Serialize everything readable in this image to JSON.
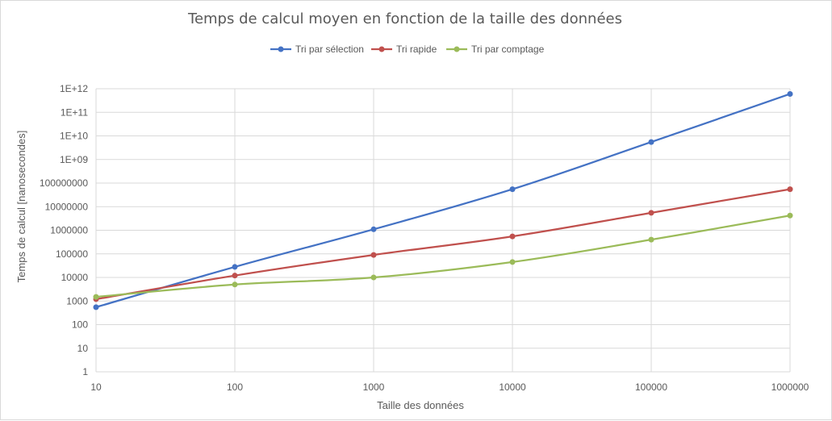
{
  "chart_data": {
    "type": "line",
    "title": "Temps de calcul moyen en fonction de la taille des données",
    "xlabel": "Taille des données",
    "ylabel": "Temps de calcul [nanosecondes]",
    "x_scale": "log",
    "y_scale": "log",
    "x": [
      10,
      100,
      1000,
      10000,
      100000,
      1000000
    ],
    "x_tick_labels": [
      "10",
      "100",
      "1000",
      "10000",
      "100000",
      "1000000"
    ],
    "y_tick_labels": [
      "1",
      "10",
      "100",
      "1000",
      "10000",
      "100000",
      "1000000",
      "10000000",
      "100000000",
      "1E+09",
      "1E+10",
      "1E+11",
      "1E+12"
    ],
    "ylim": [
      1,
      1000000000000
    ],
    "grid": true,
    "legend_position": "top",
    "series": [
      {
        "name": "Tri par sélection",
        "color": "#4472C4",
        "values": [
          550,
          28000,
          1100000,
          55000000,
          5500000000,
          600000000000
        ]
      },
      {
        "name": "Tri rapide",
        "color": "#C0504D",
        "values": [
          1200,
          12000,
          90000,
          550000,
          5500000,
          55000000
        ]
      },
      {
        "name": "Tri par comptage",
        "color": "#9BBB59",
        "values": [
          1500,
          5000,
          10000,
          45000,
          400000,
          4200000
        ]
      }
    ]
  }
}
